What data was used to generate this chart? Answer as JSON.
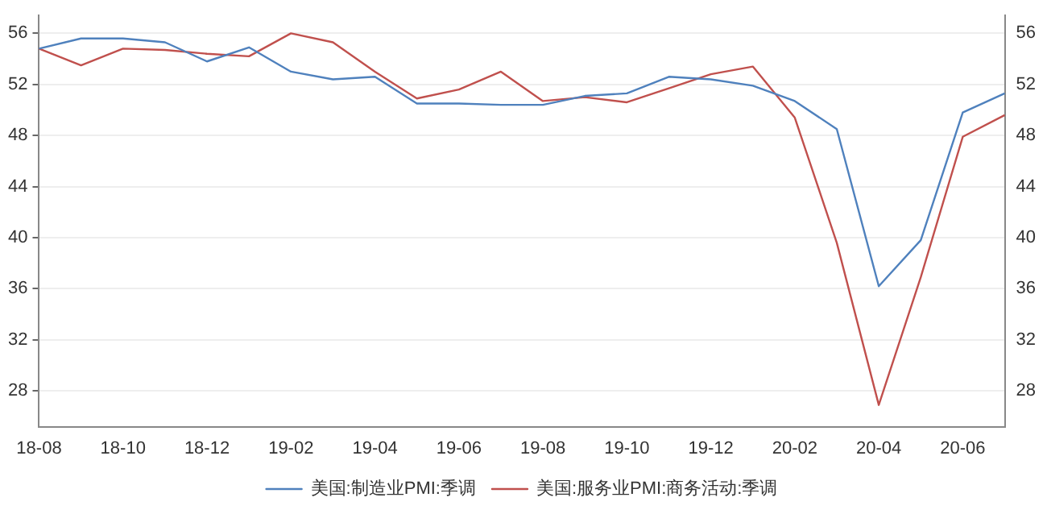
{
  "chart_data": {
    "type": "line",
    "categories": [
      "18-08",
      null,
      "18-10",
      null,
      "18-12",
      null,
      "19-02",
      null,
      "19-04",
      null,
      "19-06",
      null,
      "19-08",
      null,
      "19-10",
      null,
      "19-12",
      null,
      "20-02",
      null,
      "20-04",
      null,
      "20-06",
      null
    ],
    "series": [
      {
        "name": "美国:制造业PMI:季调",
        "color": "#4f81bd",
        "values": [
          54.8,
          55.6,
          55.6,
          55.3,
          53.8,
          54.9,
          53.0,
          52.4,
          52.6,
          50.5,
          50.5,
          50.4,
          50.4,
          51.1,
          51.3,
          52.6,
          52.4,
          51.9,
          50.7,
          48.5,
          36.2,
          39.8,
          49.8,
          51.3
        ]
      },
      {
        "name": "美国:服务业PMI:商务活动:季调",
        "color": "#c0504d",
        "values": [
          54.8,
          53.5,
          54.8,
          54.7,
          54.4,
          54.2,
          56.0,
          55.3,
          53.0,
          50.9,
          51.6,
          53.0,
          50.7,
          51.0,
          50.6,
          51.7,
          52.8,
          53.4,
          49.4,
          39.6,
          26.9,
          36.9,
          47.9,
          49.6
        ]
      }
    ],
    "ylim": [
      25.2,
      57.4
    ],
    "yticks": [
      28,
      32,
      36,
      40,
      44,
      48,
      52,
      56
    ],
    "y2lim": [
      25.2,
      57.4
    ],
    "y2ticks": [
      28,
      32,
      36,
      40,
      44,
      48,
      52,
      56
    ],
    "grid": "y",
    "legend": "bottom",
    "marker": "none",
    "line_style": "solid"
  }
}
